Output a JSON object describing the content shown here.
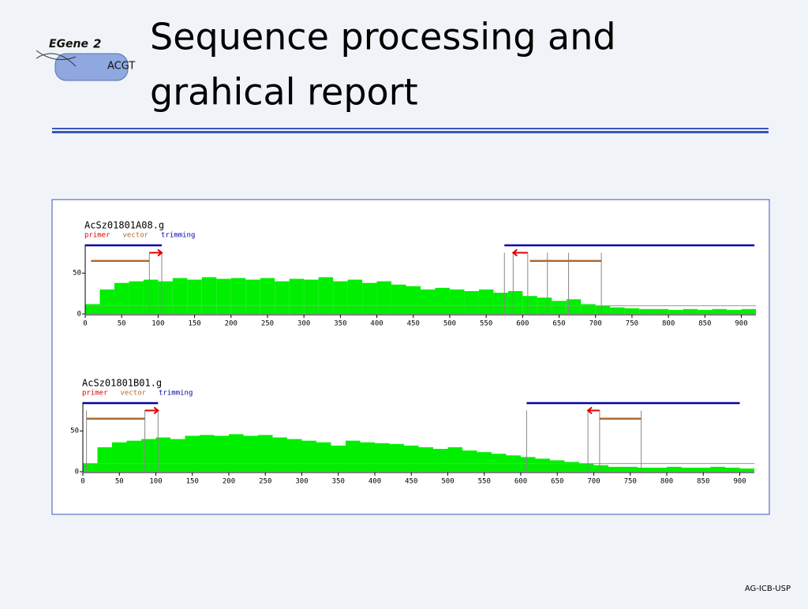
{
  "header": {
    "title_lines": [
      "Sequence processing and",
      "grahical report"
    ],
    "logo_name": "EGene",
    "logo_version": "2",
    "logo_sequence": "ACGT"
  },
  "footer": "AG-ICB-USP",
  "chart_data": [
    {
      "type": "histogram",
      "title": "AcSz01801A08.g",
      "legend": [
        {
          "name": "primer",
          "color": "#dd0000"
        },
        {
          "name": "vector",
          "color": "#b06a30"
        },
        {
          "name": "trimming",
          "color": "#0000aa"
        }
      ],
      "bins": [
        0,
        20,
        40,
        60,
        80,
        100,
        120,
        140,
        160,
        180,
        200,
        220,
        240,
        260,
        280,
        300,
        320,
        340,
        360,
        380,
        400,
        420,
        440,
        460,
        480,
        500,
        520,
        540,
        560,
        580,
        600,
        620,
        640,
        660,
        680,
        700,
        720,
        740,
        760,
        780,
        800,
        820,
        840,
        860,
        880,
        900,
        920
      ],
      "values": [
        12,
        30,
        38,
        40,
        42,
        40,
        44,
        42,
        45,
        43,
        44,
        42,
        44,
        40,
        43,
        42,
        45,
        40,
        42,
        38,
        40,
        36,
        34,
        30,
        32,
        30,
        28,
        30,
        26,
        28,
        22,
        20,
        16,
        18,
        12,
        10,
        8,
        7,
        6,
        6,
        5,
        6,
        5,
        6,
        5,
        6
      ],
      "color": "#00ee00",
      "threshold": 10,
      "trimming": [
        [
          0,
          105
        ],
        [
          575,
          918
        ]
      ],
      "vector": [
        [
          8,
          88
        ],
        [
          610,
          708
        ]
      ],
      "primer": [
        [
          88,
          105
        ],
        [
          607,
          587
        ]
      ],
      "markers": [
        88,
        105,
        575,
        587,
        607,
        634,
        663,
        708
      ],
      "xlim": [
        0,
        920
      ],
      "ylim": [
        0,
        85
      ],
      "xticks": [
        0,
        50,
        100,
        150,
        200,
        250,
        300,
        350,
        400,
        450,
        500,
        550,
        600,
        650,
        700,
        750,
        800,
        850,
        900
      ],
      "yticks": [
        0,
        50
      ]
    },
    {
      "type": "histogram",
      "title": "AcSz01801B01.g",
      "legend": [
        {
          "name": "primer",
          "color": "#dd0000"
        },
        {
          "name": "vector",
          "color": "#b06a30"
        },
        {
          "name": "trimming",
          "color": "#0000aa"
        }
      ],
      "bins": [
        0,
        20,
        40,
        60,
        80,
        100,
        120,
        140,
        160,
        180,
        200,
        220,
        240,
        260,
        280,
        300,
        320,
        340,
        360,
        380,
        400,
        420,
        440,
        460,
        480,
        500,
        520,
        540,
        560,
        580,
        600,
        620,
        640,
        660,
        680,
        700,
        720,
        740,
        760,
        780,
        800,
        820,
        840,
        860,
        880,
        900,
        920
      ],
      "values": [
        10,
        30,
        36,
        38,
        40,
        42,
        40,
        44,
        45,
        44,
        46,
        44,
        45,
        42,
        40,
        38,
        36,
        32,
        38,
        36,
        35,
        34,
        32,
        30,
        28,
        30,
        26,
        24,
        22,
        20,
        18,
        16,
        14,
        12,
        10,
        8,
        6,
        6,
        5,
        5,
        6,
        5,
        5,
        6,
        5,
        4
      ],
      "color": "#00ee00",
      "threshold": 10,
      "trimming": [
        [
          0,
          103
        ],
        [
          608,
          900
        ]
      ],
      "vector": [
        [
          5,
          85
        ],
        [
          708,
          765
        ]
      ],
      "primer": [
        [
          85,
          103
        ],
        [
          708,
          692
        ]
      ],
      "markers": [
        5,
        85,
        103,
        608,
        692,
        708,
        765
      ],
      "xlim": [
        0,
        920
      ],
      "ylim": [
        0,
        85
      ],
      "xticks": [
        0,
        50,
        100,
        150,
        200,
        250,
        300,
        350,
        400,
        450,
        500,
        550,
        600,
        650,
        700,
        750,
        800,
        850,
        900
      ],
      "yticks": [
        0,
        50
      ]
    }
  ]
}
